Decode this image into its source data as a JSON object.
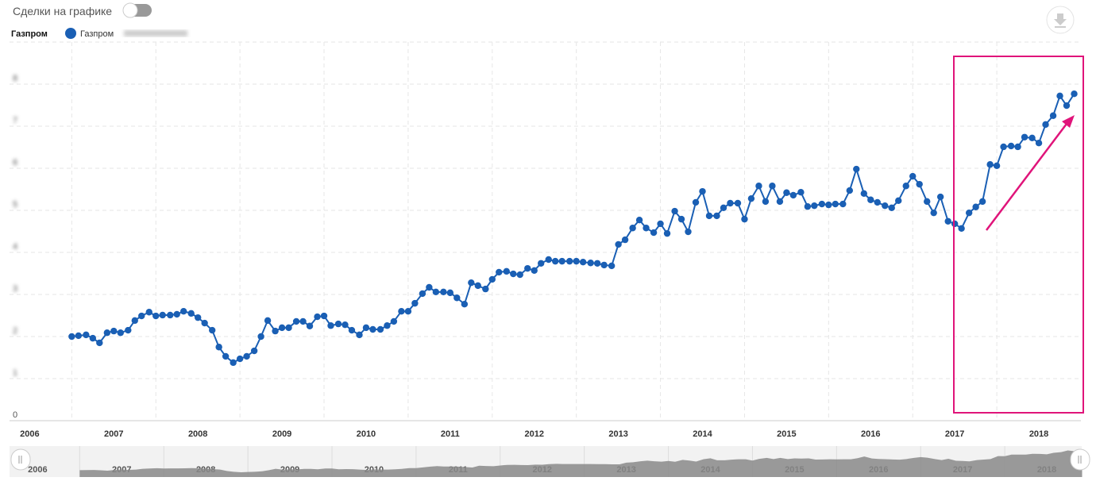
{
  "toolbar": {
    "toggle_label": "Сделки на графике"
  },
  "chart_data": {
    "type": "line",
    "label": "Газпром",
    "series": [
      {
        "name": "Газпром",
        "color": "#1a5fb4",
        "x": [
          2007.0,
          2007.08,
          2007.17,
          2007.25,
          2007.33,
          2007.42,
          2007.5,
          2007.58,
          2007.67,
          2007.75,
          2007.83,
          2007.92,
          2008.0,
          2008.08,
          2008.17,
          2008.25,
          2008.33,
          2008.42,
          2008.5,
          2008.58,
          2008.67,
          2008.75,
          2008.83,
          2008.92,
          2009.0,
          2009.08,
          2009.17,
          2009.25,
          2009.33,
          2009.42,
          2009.5,
          2009.58,
          2009.67,
          2009.75,
          2009.83,
          2009.92,
          2010.0,
          2010.08,
          2010.17,
          2010.25,
          2010.33,
          2010.42,
          2010.5,
          2010.58,
          2010.67,
          2010.75,
          2010.83,
          2010.92,
          2011.0,
          2011.08,
          2011.17,
          2011.25,
          2011.33,
          2011.42,
          2011.5,
          2011.58,
          2011.67,
          2011.75,
          2011.83,
          2011.92,
          2012.0,
          2012.08,
          2012.17,
          2012.25,
          2012.33,
          2012.42,
          2012.5,
          2012.58,
          2012.67,
          2012.75,
          2012.83,
          2012.92,
          2013.0,
          2013.08,
          2013.17,
          2013.25,
          2013.33,
          2013.42,
          2013.5,
          2013.58,
          2013.67,
          2013.75,
          2013.83,
          2013.92,
          2014.0,
          2014.08,
          2014.17,
          2014.25,
          2014.33,
          2014.42,
          2014.5,
          2014.58,
          2014.67,
          2014.75,
          2014.83,
          2014.92,
          2015.0,
          2015.08,
          2015.17,
          2015.25,
          2015.33,
          2015.42,
          2015.5,
          2015.58,
          2015.67,
          2015.75,
          2015.83,
          2015.92,
          2016.0,
          2016.08,
          2016.17,
          2016.25,
          2016.33,
          2016.42,
          2016.5,
          2016.58,
          2016.67,
          2016.75,
          2016.83,
          2016.92,
          2017.0,
          2017.08,
          2017.17,
          2017.25,
          2017.33,
          2017.42,
          2017.5,
          2017.58,
          2017.67,
          2017.75,
          2017.83,
          2017.92,
          2018.0,
          2018.08,
          2018.17,
          2018.25,
          2018.33,
          2018.42,
          2018.5,
          2018.58,
          2018.67,
          2018.75,
          2018.83,
          2018.92
        ],
        "values": [
          2.0,
          2.02,
          2.04,
          1.96,
          1.85,
          2.09,
          2.13,
          2.09,
          2.15,
          2.38,
          2.49,
          2.58,
          2.49,
          2.51,
          2.51,
          2.53,
          2.6,
          2.55,
          2.45,
          2.32,
          2.15,
          1.75,
          1.53,
          1.38,
          1.47,
          1.53,
          1.66,
          2.0,
          2.38,
          2.13,
          2.21,
          2.21,
          2.36,
          2.36,
          2.25,
          2.47,
          2.49,
          2.26,
          2.3,
          2.28,
          2.15,
          2.04,
          2.21,
          2.17,
          2.17,
          2.26,
          2.36,
          2.6,
          2.6,
          2.79,
          3.02,
          3.17,
          3.06,
          3.06,
          3.04,
          2.92,
          2.77,
          3.28,
          3.21,
          3.13,
          3.36,
          3.53,
          3.55,
          3.49,
          3.47,
          3.62,
          3.57,
          3.74,
          3.83,
          3.79,
          3.79,
          3.79,
          3.79,
          3.77,
          3.75,
          3.74,
          3.7,
          3.68,
          4.19,
          4.3,
          4.58,
          4.77,
          4.58,
          4.47,
          4.68,
          4.45,
          4.98,
          4.79,
          4.49,
          5.19,
          5.45,
          4.87,
          4.87,
          5.06,
          5.17,
          5.17,
          4.79,
          5.28,
          5.58,
          5.21,
          5.58,
          5.21,
          5.42,
          5.36,
          5.43,
          5.09,
          5.11,
          5.15,
          5.13,
          5.15,
          5.15,
          5.47,
          5.98,
          5.4,
          5.25,
          5.19,
          5.11,
          5.06,
          5.23,
          5.58,
          5.81,
          5.62,
          5.21,
          4.94,
          5.32,
          4.74,
          4.68,
          4.57,
          4.94,
          5.08,
          5.21,
          6.09,
          6.06,
          6.51,
          6.53,
          6.51,
          6.74,
          6.72,
          6.6,
          7.04,
          7.25,
          7.72,
          7.49,
          7.77
        ]
      }
    ],
    "xlim": [
      2006.26,
      2019.0
    ],
    "xticks": [
      2006,
      2007,
      2008,
      2009,
      2010,
      2011,
      2012,
      2013,
      2014,
      2015,
      2016,
      2017,
      2018
    ],
    "ylim": [
      0,
      9
    ],
    "yticks": [
      0,
      1,
      2,
      3,
      4,
      5,
      6,
      7,
      8
    ],
    "grid": true
  }
}
